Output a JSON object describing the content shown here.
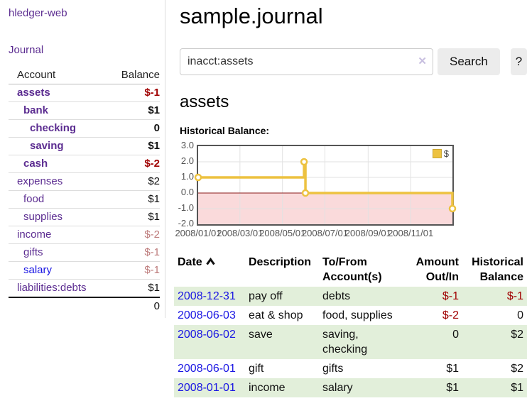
{
  "colors": {
    "link_purple": "#5c2d91",
    "link_blue": "#1a16e3",
    "negative_red": "#a00000",
    "muted_negative": "#bd7b7b",
    "row_stripe_green": "#e2efda",
    "chart_gold": "#edc240",
    "button_gray": "#ececec"
  },
  "sidebar": {
    "app_title": "hledger-web",
    "nav_journal": "Journal",
    "account_header": "Account",
    "balance_header": "Balance",
    "accounts": [
      {
        "name": "assets",
        "level": 1,
        "bold": true,
        "balance": "$-1",
        "balance_class": "neg"
      },
      {
        "name": "bank",
        "level": 2,
        "bold": true,
        "balance": "$1",
        "balance_class": "pos"
      },
      {
        "name": "checking",
        "level": 3,
        "bold": true,
        "balance": "0",
        "balance_class": "pos"
      },
      {
        "name": "saving",
        "level": 3,
        "bold": true,
        "balance": "$1",
        "balance_class": "pos"
      },
      {
        "name": "cash",
        "level": 2,
        "bold": true,
        "balance": "$-2",
        "balance_class": "neg"
      },
      {
        "name": "expenses",
        "level": 1,
        "bold": false,
        "balance": "$2",
        "balance_class": "pos"
      },
      {
        "name": "food",
        "level": 2,
        "bold": false,
        "balance": "$1",
        "balance_class": "pos"
      },
      {
        "name": "supplies",
        "level": 2,
        "bold": false,
        "balance": "$1",
        "balance_class": "pos"
      },
      {
        "name": "income",
        "level": 1,
        "bold": false,
        "balance": "$-2",
        "balance_class": "muted-neg"
      },
      {
        "name": "gifts",
        "level": 2,
        "bold": false,
        "balance": "$-1",
        "balance_class": "muted-neg"
      },
      {
        "name": "salary",
        "level": 2,
        "bold": false,
        "balance": "$-1",
        "balance_class": "muted-neg",
        "link_class": "blue"
      },
      {
        "name": "liabilities:debts",
        "level": 1,
        "bold": false,
        "balance": "$1",
        "balance_class": "pos"
      }
    ],
    "total": "0"
  },
  "header": {
    "title": "sample.journal"
  },
  "search": {
    "value": "inacct:assets",
    "clear_icon": "✕",
    "button_label": "Search",
    "help_label": "?"
  },
  "account_page": {
    "heading": "assets",
    "chart_label": "Historical Balance:"
  },
  "chart_data": {
    "type": "line",
    "steps": true,
    "title": "Historical Balance",
    "ylim": [
      -2,
      3
    ],
    "xlim_days": [
      0,
      365
    ],
    "y_ticks": [
      "3.0",
      "2.0",
      "1.0",
      "0.0",
      "-1.0",
      "-2.0"
    ],
    "x_ticks": [
      {
        "label": "2008/01/01",
        "day": 0
      },
      {
        "label": "2008/03/01",
        "day": 60
      },
      {
        "label": "2008/05/01",
        "day": 121
      },
      {
        "label": "2008/07/01",
        "day": 182
      },
      {
        "label": "2008/09/01",
        "day": 244
      },
      {
        "label": "2008/11/01",
        "day": 305
      }
    ],
    "series": [
      {
        "name": "$",
        "color": "#edc240",
        "points": [
          {
            "date": "2008-01-01",
            "day": 0,
            "value": 1.0
          },
          {
            "date": "2008-06-01",
            "day": 152,
            "value": 2.0
          },
          {
            "date": "2008-06-03",
            "day": 154,
            "value": 0.0
          },
          {
            "date": "2008-12-31",
            "day": 365,
            "value": -1.0
          }
        ]
      }
    ],
    "grid": true,
    "negative_region_fill": "#fadadb",
    "zero_line_color": "#8b1a1a",
    "legend": {
      "label": "$",
      "position": "top-right"
    }
  },
  "register": {
    "columns": {
      "date": "Date",
      "description": "Description",
      "tofrom": "To/From Account(s)",
      "amount": "Amount Out/In",
      "balance": "Historical Balance"
    },
    "rows": [
      {
        "date": "2008-12-31",
        "description": "pay off",
        "accounts": "debts",
        "amount": "$-1",
        "amount_class": "neg",
        "balance": "$-1",
        "balance_class": "neg"
      },
      {
        "date": "2008-06-03",
        "description": "eat & shop",
        "accounts": "food, supplies",
        "amount": "$-2",
        "amount_class": "neg",
        "balance": "0",
        "balance_class": "pos"
      },
      {
        "date": "2008-06-02",
        "description": "save",
        "accounts": "saving, checking",
        "amount": "0",
        "amount_class": "pos",
        "balance": "$2",
        "balance_class": "pos"
      },
      {
        "date": "2008-06-01",
        "description": "gift",
        "accounts": "gifts",
        "amount": "$1",
        "amount_class": "pos",
        "balance": "$2",
        "balance_class": "pos"
      },
      {
        "date": "2008-01-01",
        "description": "income",
        "accounts": "salary",
        "amount": "$1",
        "amount_class": "pos",
        "balance": "$1",
        "balance_class": "pos"
      }
    ]
  }
}
